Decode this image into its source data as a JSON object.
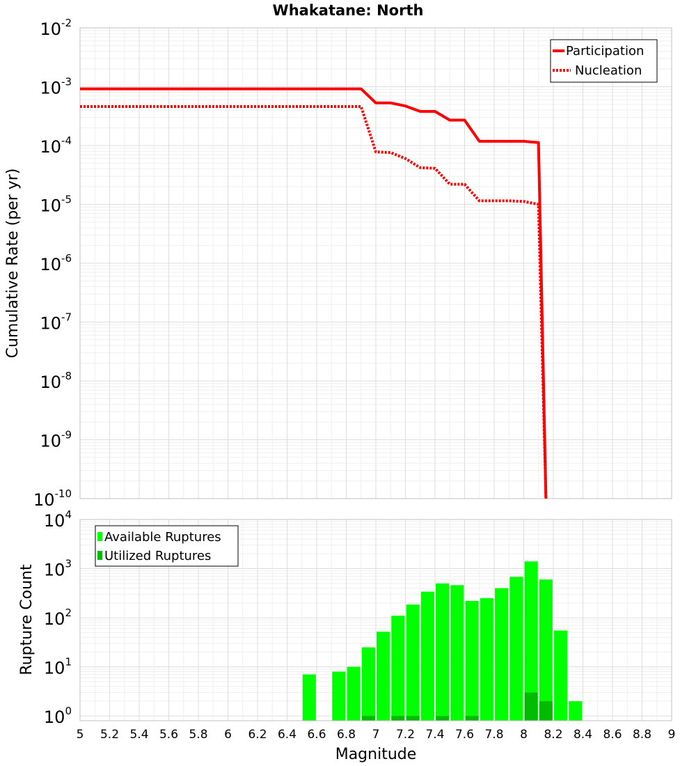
{
  "chart_data": [
    {
      "type": "line",
      "title": "Whakatane: North",
      "xlabel": "",
      "ylabel": "Cumulative Rate (per yr)",
      "xlim": [
        5,
        9
      ],
      "ylim": [
        1e-10,
        0.01
      ],
      "yscale": "log",
      "grid": true,
      "legend_position": "top-right",
      "y_tick_labels": [
        {
          "base": "10",
          "exp": "-2"
        },
        {
          "base": "10",
          "exp": "-3"
        },
        {
          "base": "10",
          "exp": "-4"
        },
        {
          "base": "10",
          "exp": "-5"
        },
        {
          "base": "10",
          "exp": "-6"
        },
        {
          "base": "10",
          "exp": "-7"
        },
        {
          "base": "10",
          "exp": "-8"
        },
        {
          "base": "10",
          "exp": "-9"
        },
        {
          "base": "10",
          "exp": "-10"
        }
      ],
      "series": [
        {
          "name": "Participation",
          "style": "solid",
          "color": "#ff0000",
          "x": [
            5.0,
            6.9,
            7.0,
            7.1,
            7.2,
            7.3,
            7.4,
            7.5,
            7.6,
            7.7,
            7.8,
            7.9,
            8.0,
            8.1,
            8.15
          ],
          "y": [
            0.00092,
            0.00092,
            0.00053,
            0.00053,
            0.00047,
            0.00038,
            0.00038,
            0.00027,
            0.00027,
            0.000118,
            0.000118,
            0.000118,
            0.000118,
            0.000112,
            1e-10
          ]
        },
        {
          "name": "Nucleation",
          "style": "dotted",
          "color": "#ff0000",
          "x": [
            5.0,
            6.9,
            7.0,
            7.1,
            7.2,
            7.3,
            7.4,
            7.5,
            7.6,
            7.7,
            7.8,
            7.9,
            8.0,
            8.1,
            8.15
          ],
          "y": [
            0.00046,
            0.00046,
            7.8e-05,
            7.6e-05,
            6e-05,
            4.2e-05,
            4.1e-05,
            2.2e-05,
            2.2e-05,
            1.15e-05,
            1.15e-05,
            1.15e-05,
            1.12e-05,
            1e-05,
            1e-10
          ]
        }
      ]
    },
    {
      "type": "bar",
      "title": "",
      "xlabel": "Magnitude",
      "ylabel": "Rupture Count",
      "xlim": [
        5,
        9
      ],
      "ylim": [
        0.8,
        10000
      ],
      "yscale": "log",
      "grid": true,
      "legend_position": "top-left",
      "y_tick_labels": [
        {
          "base": "10",
          "exp": "4"
        },
        {
          "base": "10",
          "exp": "3"
        },
        {
          "base": "10",
          "exp": "2"
        },
        {
          "base": "10",
          "exp": "1"
        },
        {
          "base": "10",
          "exp": "0"
        }
      ],
      "x_tick_labels": [
        "5",
        "5.2",
        "5.4",
        "5.6",
        "5.8",
        "6",
        "6.2",
        "6.4",
        "6.6",
        "6.8",
        "7",
        "7.2",
        "7.4",
        "7.6",
        "7.8",
        "8",
        "8.2",
        "8.4",
        "8.6",
        "8.8",
        "9"
      ],
      "x": [
        6.55,
        6.75,
        6.85,
        6.95,
        7.05,
        7.15,
        7.25,
        7.35,
        7.45,
        7.55,
        7.65,
        7.75,
        7.85,
        7.95,
        8.05,
        8.15,
        8.25,
        8.35
      ],
      "series": [
        {
          "name": "Available Ruptures",
          "color": "#00ff00",
          "values": [
            7,
            8,
            10,
            25,
            52,
            110,
            185,
            340,
            500,
            460,
            220,
            250,
            400,
            680,
            1400,
            600,
            55,
            2
          ]
        },
        {
          "name": "Utilized Ruptures",
          "color": "#00bb00",
          "values": [
            0,
            0,
            0,
            1,
            0,
            1,
            1,
            0,
            1,
            0,
            1,
            0,
            0,
            0,
            3,
            2,
            0,
            0
          ]
        }
      ]
    }
  ]
}
